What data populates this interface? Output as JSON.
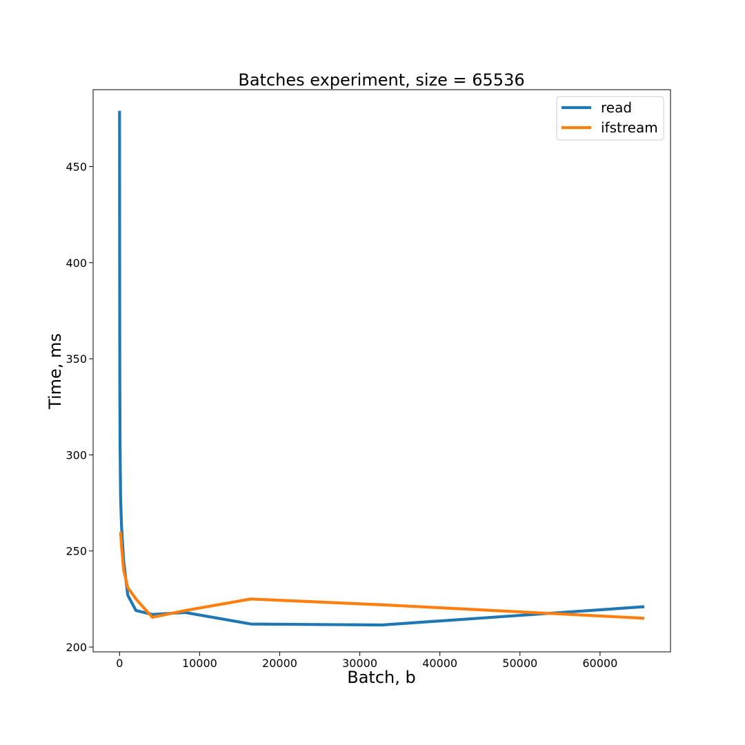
{
  "chart_data": {
    "type": "line",
    "title": "Batches experiment, size = 65536",
    "xlabel": "Batch, b",
    "ylabel": "Time, ms",
    "xlim": [
      -3300,
      68800
    ],
    "ylim": [
      197.5,
      490
    ],
    "xticks": [
      0,
      10000,
      20000,
      30000,
      40000,
      50000,
      60000
    ],
    "xtick_labels": [
      "0",
      "10000",
      "20000",
      "30000",
      "40000",
      "50000",
      "60000"
    ],
    "yticks": [
      200,
      250,
      300,
      350,
      400,
      450
    ],
    "ytick_labels": [
      "200",
      "250",
      "300",
      "350",
      "400",
      "450"
    ],
    "grid": false,
    "legend": "top-right",
    "series": [
      {
        "name": "read",
        "color": "#1f77b4",
        "x": [
          1,
          2,
          4,
          8,
          16,
          32,
          64,
          128,
          256,
          512,
          1024,
          2048,
          4096,
          8192,
          16384,
          32768,
          65536
        ],
        "y": [
          479,
          470,
          455,
          430,
          390,
          340,
          305,
          278,
          262,
          245,
          227,
          219,
          217,
          218,
          212,
          211.5,
          221
        ]
      },
      {
        "name": "ifstream",
        "color": "#ff7f0e",
        "x": [
          128,
          256,
          512,
          1024,
          2048,
          4096,
          8192,
          16384,
          32768,
          65536
        ],
        "y": [
          260,
          252,
          240,
          231,
          225,
          215.5,
          219,
          225,
          222,
          215
        ]
      }
    ]
  }
}
